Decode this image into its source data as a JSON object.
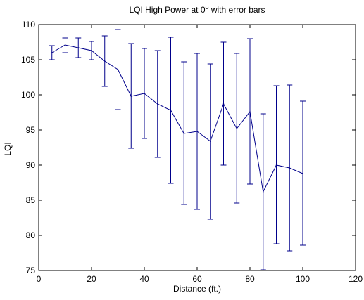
{
  "chart_data": {
    "type": "line",
    "title": {
      "prefix": "LQI High Power at 0",
      "superscript": "o",
      "suffix": " with error bars"
    },
    "xlabel": "Distance (ft.)",
    "ylabel": "LQI",
    "xlim": [
      0,
      120
    ],
    "ylim": [
      75,
      110
    ],
    "xticks": [
      0,
      20,
      40,
      60,
      80,
      100,
      120
    ],
    "yticks": [
      75,
      80,
      85,
      90,
      95,
      100,
      105,
      110
    ],
    "grid": false,
    "line_color": "#00008b",
    "series": [
      {
        "x": [
          5,
          10,
          15,
          20,
          25,
          30,
          35,
          40,
          45,
          50,
          55,
          60,
          65,
          70,
          75,
          80,
          85,
          90,
          95,
          100
        ],
        "y": [
          106.0,
          107.1,
          106.7,
          106.3,
          104.8,
          103.6,
          99.8,
          100.2,
          98.7,
          97.8,
          94.5,
          94.8,
          93.4,
          98.7,
          95.2,
          97.6,
          86.2,
          90.0,
          89.6,
          88.8
        ],
        "error_low": [
          105.0,
          106.0,
          105.3,
          105.0,
          101.2,
          97.9,
          92.4,
          93.8,
          91.1,
          87.4,
          84.4,
          83.7,
          82.3,
          90.0,
          84.6,
          87.3,
          75.1,
          78.8,
          77.8,
          78.6
        ],
        "error_high": [
          107.0,
          108.1,
          108.1,
          107.6,
          108.4,
          109.3,
          107.3,
          106.6,
          106.3,
          108.2,
          104.7,
          105.9,
          104.4,
          107.5,
          105.9,
          108.0,
          97.3,
          101.3,
          101.4,
          99.1
        ]
      }
    ]
  }
}
